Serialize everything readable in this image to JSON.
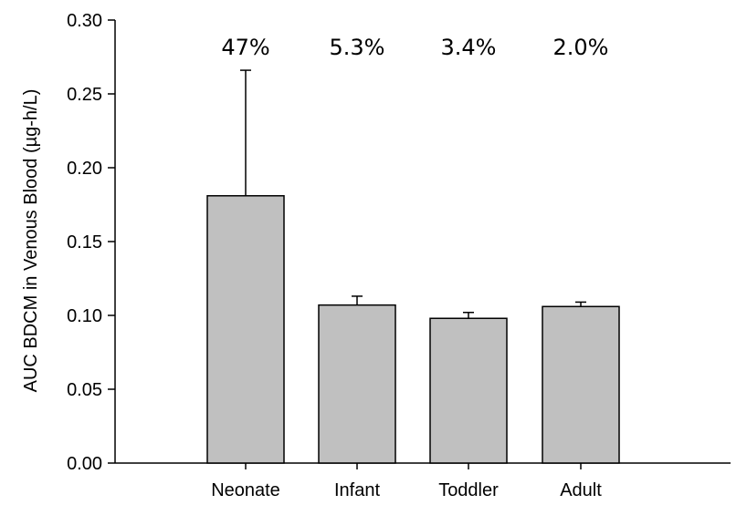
{
  "chart_data": {
    "type": "bar",
    "categories": [
      "Neonate",
      "Infant",
      "Toddler",
      "Adult"
    ],
    "values": [
      0.181,
      0.107,
      0.098,
      0.106
    ],
    "error_upper": [
      0.266,
      0.113,
      0.102,
      0.109
    ],
    "annotations": [
      "47%",
      "5.3%",
      "3.4%",
      "2.0%"
    ],
    "title": "",
    "xlabel": "",
    "ylabel": "AUC BDCM in Venous Blood (µg-h/L)",
    "ylim": [
      0,
      0.3
    ],
    "yticks": [
      "0.00",
      "0.05",
      "0.10",
      "0.15",
      "0.20",
      "0.25",
      "0.30"
    ],
    "grid": false,
    "legend": "none",
    "bar_color": "#c0c0c0",
    "edge_color": "#000000"
  }
}
